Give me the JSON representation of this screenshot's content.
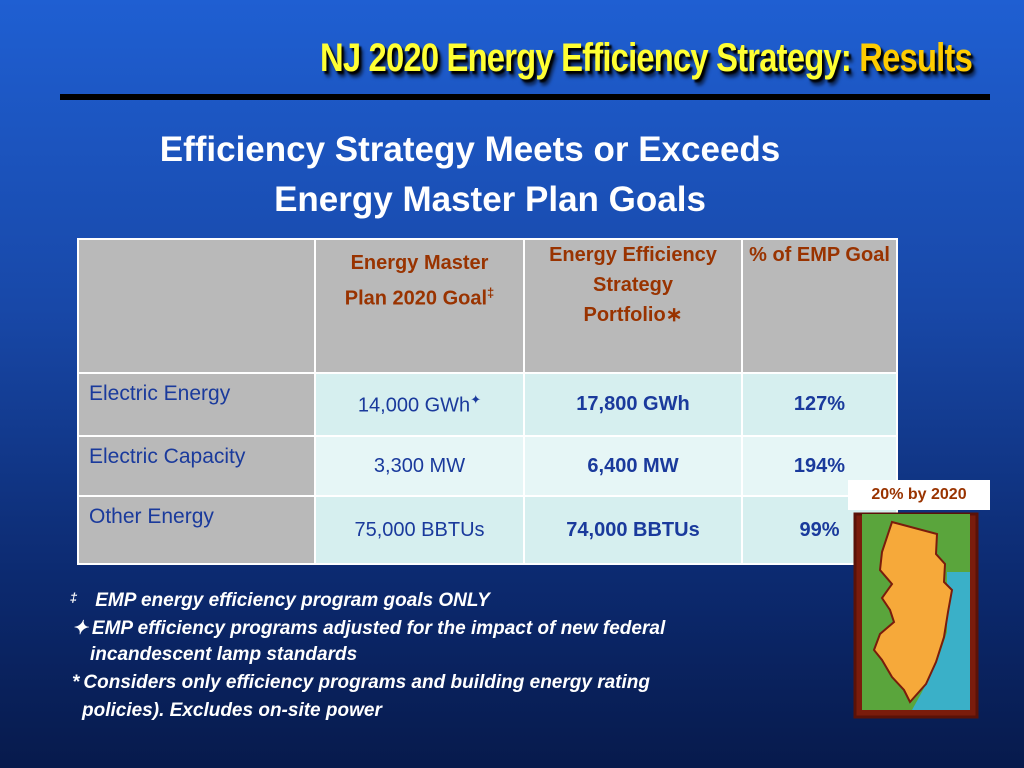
{
  "title": {
    "main": "NJ 2020 Energy Efficiency Strategy:",
    "highlight": "Results"
  },
  "subtitle": [
    "Efficiency Strategy Meets or Exceeds",
    "Energy Master Plan Goals"
  ],
  "table": {
    "header": [
      {
        "text": "Energy Master Plan 2020 Goal",
        "mark": "‡"
      },
      {
        "text": "Energy Efficiency Strategy Portfolio",
        "mark": "∗"
      },
      {
        "text": "% of EMP Goal"
      }
    ],
    "rows": [
      {
        "label": "Electric Energy",
        "goal": "14,000 GWh",
        "goal_mark": "✦",
        "portfolio": "17,800 GWh",
        "percent": "127%"
      },
      {
        "label": "Electric Capacity",
        "goal": "3,300 MW",
        "portfolio": "6,400 MW",
        "percent": "194%"
      },
      {
        "label": "Other Energy",
        "goal": "75,000 BBTUs",
        "portfolio": "74,000 BBTUs",
        "percent": "99%"
      }
    ]
  },
  "footnotes": [
    {
      "symbol": "‡",
      "lines": [
        "EMP energy efficiency program goals ONLY"
      ]
    },
    {
      "symbol": "✦",
      "lines": [
        "EMP efficiency programs adjusted for the impact of new federal",
        "incandescent lamp standards"
      ]
    },
    {
      "symbol": "*",
      "lines": [
        "Considers only efficiency programs and building energy rating",
        "policies). Excludes on-site power"
      ]
    }
  ],
  "badge": "20% by 2020"
}
